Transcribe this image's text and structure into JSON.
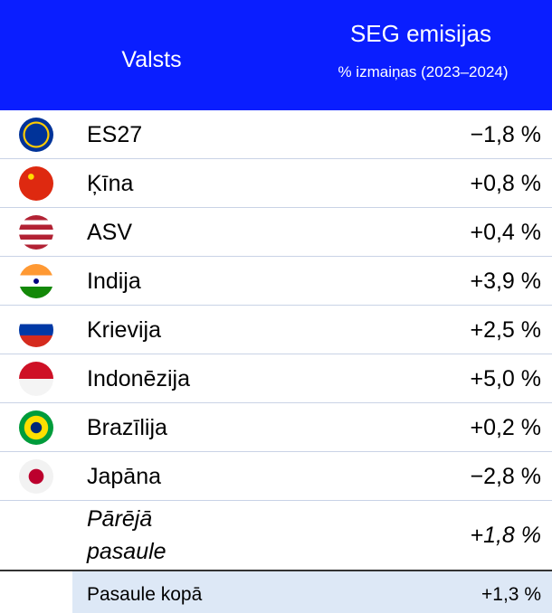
{
  "header": {
    "country": "Valsts",
    "value": "SEG emisijas",
    "subtitle": "% izmaiņas (2023–2024)"
  },
  "table": {
    "rows": [
      [
        "ES27",
        "−1,8 %"
      ],
      [
        "Ķīna",
        "+0,8 %"
      ],
      [
        "ASV",
        "+0,4 %"
      ],
      [
        "Indija",
        "+3,9 %"
      ],
      [
        "Krievija",
        "+2,5 %"
      ],
      [
        "Indonēzija",
        "+5,0 %"
      ],
      [
        "Brazīlija",
        "+0,2 %"
      ],
      [
        "Japāna",
        "−2,8 %"
      ]
    ],
    "other": [
      "Pārējā pasaule",
      "+1,8 %"
    ],
    "total": [
      "Pasaule kopā",
      "+1,3 %"
    ]
  }
}
